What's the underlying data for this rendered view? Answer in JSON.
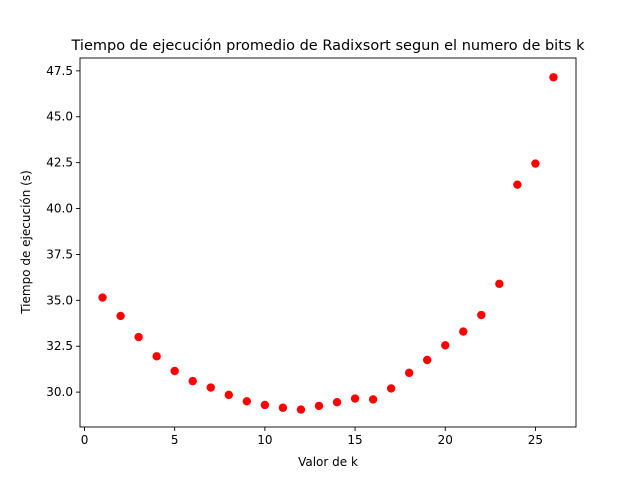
{
  "chart_data": {
    "type": "scatter",
    "title": "Tiempo de ejecución promedio de Radixsort segun el numero de bits k",
    "xlabel": "Valor de k",
    "ylabel": "Tiempo de ejecución (s)",
    "xlim": [
      -0.25,
      27.25
    ],
    "ylim": [
      28.1,
      48.2
    ],
    "xticks": [
      0,
      5,
      10,
      15,
      20,
      25
    ],
    "xtick_labels": [
      "0",
      "5",
      "10",
      "15",
      "20",
      "25"
    ],
    "yticks": [
      30.0,
      32.5,
      35.0,
      37.5,
      40.0,
      42.5,
      45.0,
      47.5
    ],
    "ytick_labels": [
      "30.0",
      "32.5",
      "35.0",
      "37.5",
      "40.0",
      "42.5",
      "45.0",
      "47.5"
    ],
    "grid": false,
    "marker_color": "#ff0000",
    "x": [
      1,
      2,
      3,
      4,
      5,
      6,
      7,
      8,
      9,
      10,
      11,
      12,
      13,
      14,
      15,
      16,
      17,
      18,
      19,
      20,
      21,
      22,
      23,
      24,
      25,
      26
    ],
    "y": [
      35.15,
      34.15,
      33.0,
      31.95,
      31.15,
      30.6,
      30.25,
      29.85,
      29.5,
      29.3,
      29.15,
      29.05,
      29.25,
      29.45,
      29.65,
      29.6,
      30.2,
      31.05,
      31.75,
      32.55,
      33.3,
      34.2,
      35.9,
      41.3,
      42.45,
      47.15
    ]
  }
}
